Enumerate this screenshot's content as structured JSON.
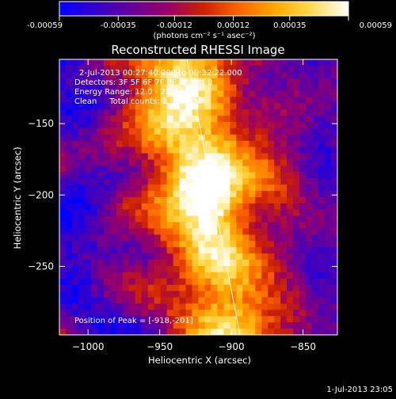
{
  "colorbar": {
    "tick_labels": [
      "-0.00059",
      "-0.00035",
      "-0.00012",
      "0.00012",
      "0.00035",
      "0.00059"
    ],
    "tick_values": [
      -0.00059,
      -0.00035,
      -0.00012,
      0.00012,
      0.00035,
      0.00059
    ],
    "range": [
      -0.00059,
      0.00059
    ],
    "unit_label": "(photons cm⁻² s⁻¹ asec⁻²)",
    "colors": [
      "#0000ff",
      "#3300cc",
      "#660099",
      "#990066",
      "#cc2200",
      "#ff6600",
      "#ffaa00",
      "#ffdd55",
      "#ffffff"
    ]
  },
  "chart_data": {
    "type": "heatmap",
    "title": "Reconstructed RHESSI Image",
    "xlabel": "Heliocentric X (arcsec)",
    "ylabel": "Heliocentric Y (arcsec)",
    "xlim": [
      -1020,
      -826
    ],
    "ylim": [
      -298,
      -105
    ],
    "x_ticks": [
      -1000,
      -950,
      -900,
      -850
    ],
    "x_tick_labels": [
      "−1000",
      "−950",
      "−900",
      "−850"
    ],
    "y_ticks": [
      -150,
      -200,
      -250
    ],
    "y_tick_labels": [
      "−150",
      "−200",
      "−250"
    ],
    "annotations": [
      "2-Jul-2013 00:27:40.000 to 00:32:22.000",
      "Detectors: 3F 5F 6F 7F 8F 9F, Att 0",
      "Energy Range: 12.0 - 25.0 keV",
      "Clean     Total counts: 1.94E+04",
      "Position of Peak = [-918,-201]"
    ],
    "peak": {
      "x": -918,
      "y": -201
    },
    "limb_line": [
      {
        "x": -931,
        "y": -105
      },
      {
        "x": -894,
        "y": -298
      }
    ],
    "grid": false,
    "colorscale": [
      "#0000ff",
      "#3300cc",
      "#660099",
      "#990066",
      "#cc2200",
      "#ff6600",
      "#ffaa00",
      "#ffdd55",
      "#ffffff"
    ]
  },
  "footer": {
    "timestamp": "1-Jul-2013 23:05"
  }
}
